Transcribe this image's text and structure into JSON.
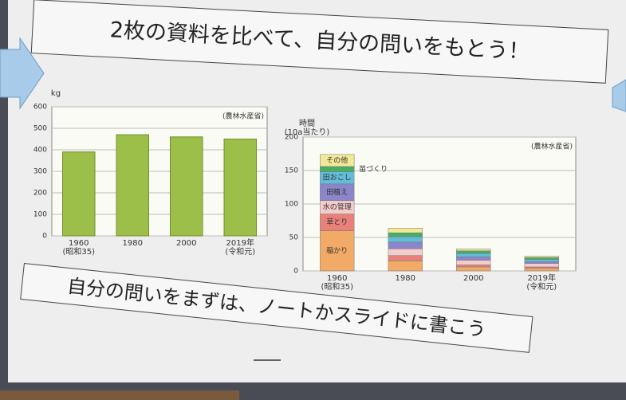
{
  "slide": {
    "title": "2枚の資料を比べて、自分の問いをもとう！",
    "footer": "自分の問いをまずは、ノートかスライドに書こう"
  },
  "chart_data": [
    {
      "type": "bar",
      "y_label": "kg",
      "source": "(農林水産省)",
      "categories": [
        "1960\n(昭和35)",
        "1980",
        "2000",
        "2019年\n(令和元)"
      ],
      "values": [
        390,
        470,
        460,
        450
      ],
      "color": "#9cbf4a",
      "ylim": [
        0,
        600
      ],
      "yticks": [
        0,
        100,
        200,
        300,
        400,
        500,
        600
      ],
      "grid": true
    },
    {
      "type": "stacked_bar",
      "y_label": "時間\n(10a当たり)",
      "source": "(農林水産省)",
      "categories": [
        "1960\n(昭和35)",
        "1980",
        "2000",
        "2019年\n(令和元)"
      ],
      "series": [
        {
          "name": "稲かり",
          "color": "#f2ab66",
          "values": [
            60,
            15,
            6,
            4
          ]
        },
        {
          "name": "草とり",
          "color": "#e8817a",
          "values": [
            25,
            8,
            3,
            2
          ]
        },
        {
          "name": "水の管理",
          "color": "#f5cccc",
          "values": [
            20,
            10,
            7,
            5
          ]
        },
        {
          "name": "田植え",
          "color": "#8a86c9",
          "values": [
            25,
            10,
            5,
            3
          ]
        },
        {
          "name": "田おこし",
          "color": "#63bcd9",
          "values": [
            18,
            8,
            5,
            3
          ]
        },
        {
          "name": "苗づくり",
          "color": "#48ad66",
          "values": [
            8,
            6,
            4,
            3
          ]
        },
        {
          "name": "その他",
          "color": "#f1e996",
          "values": [
            18,
            7,
            3,
            2
          ]
        }
      ],
      "ylim": [
        0,
        200
      ],
      "yticks": [
        0,
        50,
        100,
        150,
        200
      ],
      "grid": true
    }
  ]
}
